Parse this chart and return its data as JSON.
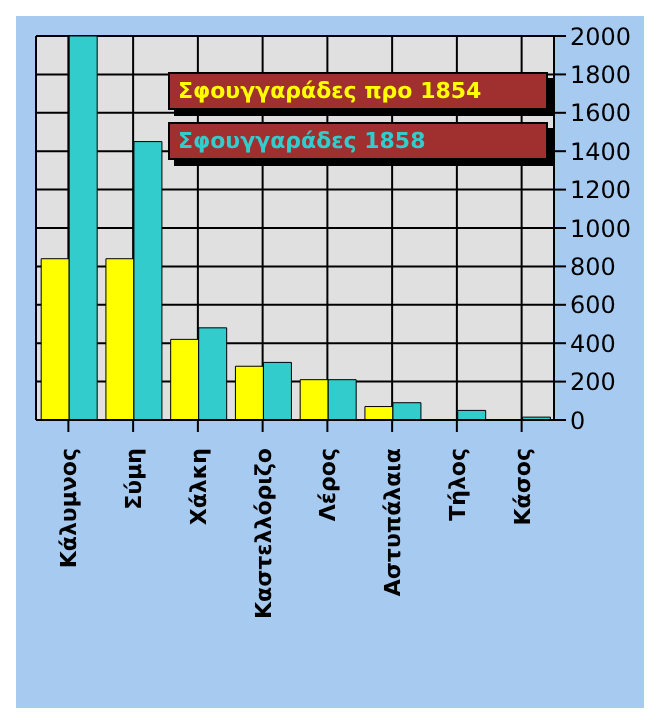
{
  "chart_data": {
    "type": "bar",
    "categories": [
      "Κάλυμνος",
      "Σύμη",
      "Χάλκη",
      "Καστελλόριζο",
      "Λέρος",
      "Αστυπάλαια",
      "Τήλος",
      "Κάσος"
    ],
    "series": [
      {
        "name": "Σφουγγαράδες προ 1854",
        "color": "#ffff00",
        "values": [
          840,
          840,
          420,
          280,
          210,
          70,
          0,
          0
        ]
      },
      {
        "name": "Σφουγγαράδες 1858",
        "color": "#33cccc",
        "values": [
          2000,
          1450,
          480,
          300,
          210,
          90,
          50,
          15
        ]
      }
    ],
    "ylim": [
      0,
      2000
    ],
    "yticks": [
      0,
      200,
      400,
      600,
      800,
      1000,
      1200,
      1400,
      1600,
      1800,
      2000
    ],
    "grid": true,
    "legend": "top right"
  }
}
